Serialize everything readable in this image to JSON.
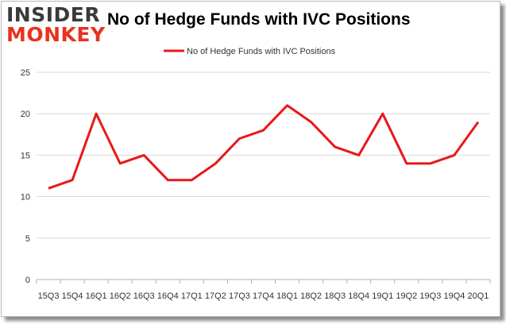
{
  "logo": {
    "line1": "INSIDER",
    "line2": "MONKEY"
  },
  "colors": {
    "series": "#e81818",
    "grid": "#d8d8d8",
    "axis": "#b0b0b0",
    "logo_red": "#e8321e",
    "logo_dark": "#3a3a3a"
  },
  "chart_data": {
    "type": "line",
    "title": "No of Hedge Funds with IVC Positions",
    "xlabel": "",
    "ylabel": "",
    "x": [
      "15Q3",
      "15Q4",
      "16Q1",
      "16Q2",
      "16Q3",
      "16Q4",
      "17Q1",
      "17Q2",
      "17Q3",
      "17Q4",
      "18Q1",
      "18Q2",
      "18Q3",
      "18Q4",
      "19Q1",
      "19Q2",
      "19Q3",
      "19Q4",
      "20Q1"
    ],
    "series": [
      {
        "name": "No of Hedge Funds with IVC Positions",
        "values": [
          11,
          12,
          20,
          14,
          15,
          12,
          12,
          14,
          17,
          18,
          21,
          19,
          16,
          15,
          20,
          14,
          14,
          15,
          19
        ]
      }
    ],
    "ylim": [
      0,
      25
    ],
    "yticks": [
      "0",
      "5",
      "10",
      "15",
      "20",
      "25"
    ],
    "grid": true,
    "legend_position": "top-center"
  }
}
